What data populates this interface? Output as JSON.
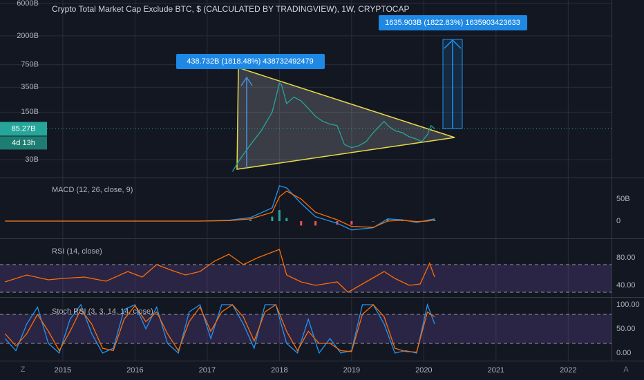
{
  "chart_data": [
    {
      "type": "line",
      "title": "Crypto Total Market Cap Exclude BTC, $ (CALCULATED BY TRADINGVIEW), 1W, CRYPTOCAP",
      "log_scale": true,
      "grid": true,
      "x": [
        2017.35,
        2017.45,
        2017.6,
        2017.75,
        2017.9,
        2018.0,
        2018.03,
        2018.1,
        2018.2,
        2018.3,
        2018.4,
        2018.5,
        2018.6,
        2018.7,
        2018.8,
        2018.9,
        2019.0,
        2019.1,
        2019.2,
        2019.3,
        2019.45,
        2019.5,
        2019.6,
        2019.7,
        2019.8,
        2019.9,
        2019.97,
        2020.05,
        2020.1,
        2020.15
      ],
      "series": [
        {
          "color": "#26a69a",
          "values": [
            20,
            30,
            50,
            80,
            150,
            400,
            380,
            200,
            250,
            220,
            170,
            130,
            110,
            100,
            95,
            50,
            45,
            48,
            55,
            75,
            110,
            95,
            80,
            75,
            65,
            60,
            55,
            70,
            95,
            85.27
          ]
        }
      ],
      "xlim": [
        2014.13,
        2022.6
      ],
      "xticks": [
        2015,
        2016,
        2017,
        2018,
        2019,
        2020,
        2021,
        2022
      ],
      "ylim": [
        16.3,
        6745
      ],
      "yticks": [
        {
          "value": 30,
          "label": "30B"
        },
        {
          "value": 150,
          "label": "150B"
        },
        {
          "value": 350,
          "label": "350B"
        },
        {
          "value": 750,
          "label": "750B"
        },
        {
          "value": 2000,
          "label": "2000B"
        },
        {
          "value": 6000,
          "label": "6000B"
        }
      ],
      "last_price": {
        "value": 85.27,
        "label": "85.27B"
      },
      "countdown": "4d 13h",
      "annotations": [
        "438.732B (1818.48%) 438732492479",
        "1635.903B (1822.83%) 1635903423633"
      ]
    },
    {
      "type": "line",
      "title": "MACD (12, 26, close, 9)",
      "x": [
        2014.2,
        2016.9,
        2017.3,
        2017.6,
        2017.9,
        2018.0,
        2018.1,
        2018.3,
        2018.5,
        2018.8,
        2019.0,
        2019.3,
        2019.5,
        2019.7,
        2019.9,
        2020.05,
        2020.15
      ],
      "series": [
        {
          "type": "bar",
          "colors": [
            "#26a69a",
            "#ef5350"
          ],
          "values": [
            0,
            0,
            1,
            3,
            10,
            25,
            7,
            -10,
            -10,
            -8,
            -8,
            -1,
            5,
            1,
            -2,
            2,
            2
          ]
        },
        {
          "color": "#2196f3",
          "values": [
            0,
            0,
            2,
            8,
            30,
            80,
            75,
            40,
            10,
            -5,
            -20,
            -15,
            5,
            3,
            -3,
            2,
            5
          ]
        },
        {
          "color": "#ff6d00",
          "values": [
            0,
            0,
            1,
            5,
            20,
            55,
            68,
            50,
            20,
            3,
            -12,
            -14,
            0,
            2,
            -1,
            0,
            3
          ]
        }
      ],
      "ylim": [
        -39,
        96.9
      ],
      "yticks": [
        0,
        {
          "value": 50,
          "label": "50B"
        }
      ]
    },
    {
      "type": "line",
      "title": "RSI (14, close)",
      "x": [
        2014.2,
        2014.5,
        2014.8,
        2015.0,
        2015.3,
        2015.6,
        2015.9,
        2016.1,
        2016.3,
        2016.5,
        2016.7,
        2016.9,
        2017.1,
        2017.3,
        2017.5,
        2017.7,
        2017.9,
        2018.0,
        2018.1,
        2018.3,
        2018.5,
        2018.8,
        2018.95,
        2019.2,
        2019.45,
        2019.6,
        2019.8,
        2019.95,
        2020.08,
        2020.15
      ],
      "series": [
        {
          "color": "#ff6d00",
          "values": [
            45,
            55,
            48,
            50,
            52,
            46,
            60,
            52,
            70,
            62,
            55,
            60,
            75,
            85,
            70,
            80,
            88,
            92,
            55,
            45,
            40,
            45,
            30,
            45,
            60,
            50,
            40,
            42,
            72,
            52
          ]
        }
      ],
      "ylim": [
        23,
        107
      ],
      "yticks": [
        {
          "value": 40,
          "label": "40.00"
        },
        {
          "value": 80,
          "label": "80.00"
        }
      ],
      "levels": [
        30,
        70
      ]
    },
    {
      "type": "line",
      "title": "Stoch RSI (3, 3, 14, 14, close)",
      "x": [
        2014.2,
        2014.35,
        2014.5,
        2014.65,
        2014.8,
        2014.95,
        2015.1,
        2015.25,
        2015.4,
        2015.55,
        2015.7,
        2015.85,
        2016.0,
        2016.15,
        2016.3,
        2016.45,
        2016.6,
        2016.75,
        2016.9,
        2017.05,
        2017.2,
        2017.35,
        2017.5,
        2017.65,
        2017.8,
        2017.95,
        2018.1,
        2018.25,
        2018.4,
        2018.55,
        2018.7,
        2018.85,
        2019.0,
        2019.15,
        2019.3,
        2019.45,
        2019.6,
        2019.75,
        2019.9,
        2020.05,
        2020.15
      ],
      "series": [
        {
          "color": "#2196f3",
          "values": [
            30,
            5,
            60,
            95,
            20,
            0,
            70,
            100,
            40,
            0,
            10,
            90,
            100,
            50,
            95,
            20,
            0,
            85,
            100,
            30,
            100,
            100,
            60,
            10,
            100,
            100,
            20,
            0,
            70,
            0,
            30,
            0,
            5,
            100,
            100,
            60,
            0,
            5,
            0,
            100,
            60
          ]
        },
        {
          "color": "#ff6d00",
          "values": [
            40,
            15,
            40,
            80,
            45,
            5,
            45,
            90,
            60,
            10,
            5,
            70,
            98,
            65,
            85,
            40,
            5,
            65,
            95,
            45,
            85,
            100,
            75,
            25,
            85,
            100,
            45,
            5,
            45,
            20,
            20,
            5,
            3,
            80,
            100,
            75,
            10,
            3,
            2,
            85,
            75
          ]
        }
      ],
      "ylim": [
        -15.7,
        114.3
      ],
      "yticks": [
        {
          "value": 0,
          "label": "0.00"
        },
        {
          "value": 50,
          "label": "50.00"
        },
        {
          "value": 100,
          "label": "100.00"
        }
      ],
      "levels": [
        20,
        80
      ]
    }
  ],
  "ui": {
    "left_button": "Z",
    "right_button": "A"
  }
}
